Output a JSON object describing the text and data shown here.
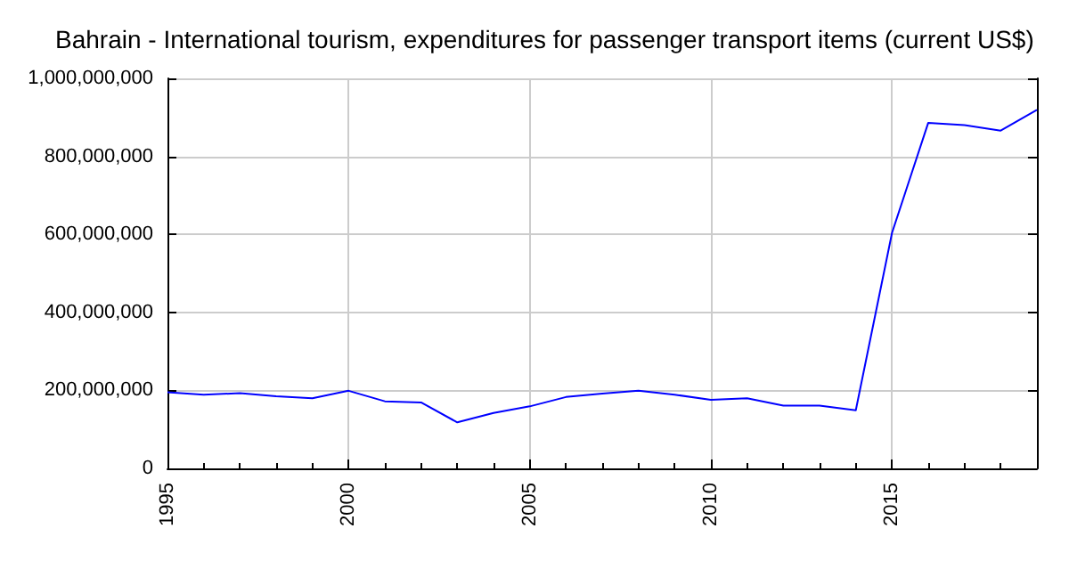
{
  "chart_data": {
    "type": "line",
    "title": "Bahrain - International tourism, expenditures for passenger transport items (current US$)",
    "x": [
      1995,
      1996,
      1997,
      1998,
      1999,
      2000,
      2001,
      2002,
      2003,
      2004,
      2005,
      2006,
      2007,
      2008,
      2009,
      2010,
      2011,
      2012,
      2013,
      2014,
      2015,
      2016,
      2017,
      2018,
      2019
    ],
    "series": [
      {
        "color": "#0000ff",
        "values": [
          195000000,
          189000000,
          193000000,
          185000000,
          180000000,
          199000000,
          172000000,
          169000000,
          118000000,
          142000000,
          159000000,
          183000000,
          192000000,
          199000000,
          189000000,
          176000000,
          180000000,
          161000000,
          161000000,
          149000000,
          604000000,
          886000000,
          880000000,
          866000000,
          919000000
        ]
      }
    ],
    "xlim": [
      1995,
      2019
    ],
    "xticks": [
      1995,
      2000,
      2005,
      2010,
      2015
    ],
    "ylim": [
      0,
      1000000000
    ],
    "yticks": [
      {
        "value": 0,
        "label": "0"
      },
      {
        "value": 200000000,
        "label": "200,000,000"
      },
      {
        "value": 400000000,
        "label": "400,000,000"
      },
      {
        "value": 600000000,
        "label": "600,000,000"
      },
      {
        "value": 800000000,
        "label": "800,000,000"
      },
      {
        "value": 1000000000,
        "label": "1,000,000,000"
      }
    ],
    "grid": true,
    "marker": "none",
    "line_style": "solid"
  }
}
